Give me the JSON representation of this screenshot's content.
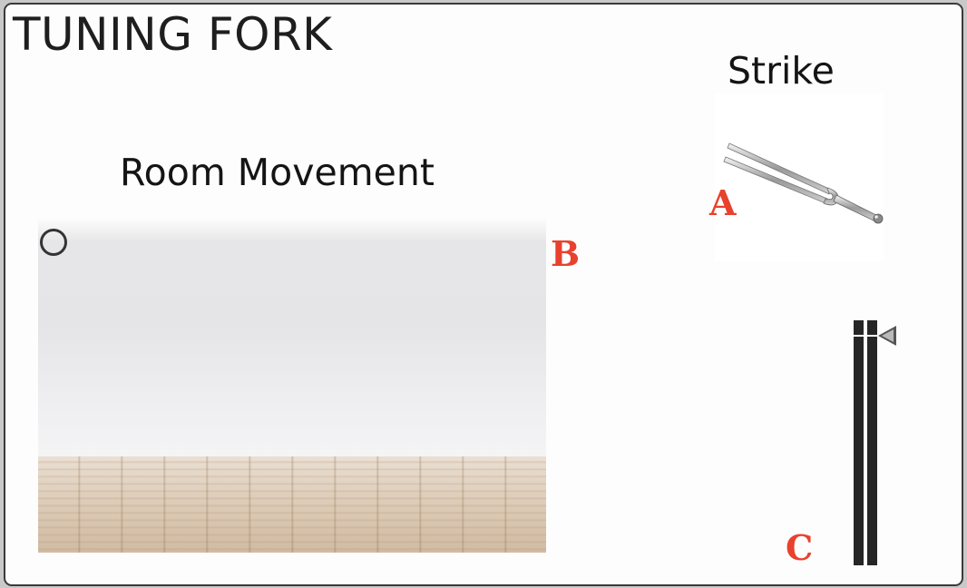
{
  "title": "TUNING FORK",
  "room": {
    "heading": "Room Movement",
    "marker_icon": "circle-marker-icon",
    "label": "B"
  },
  "strike": {
    "heading": "Strike",
    "fork_icon": "tuning-fork-icon",
    "label": "A"
  },
  "meter": {
    "label": "C",
    "pointer_icon": "triangle-pointer-icon",
    "level": 0.94
  },
  "colors": {
    "label": "#e8412e",
    "meter_bar": "#262626",
    "text": "#141414"
  }
}
